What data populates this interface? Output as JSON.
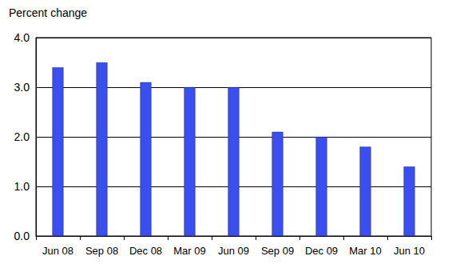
{
  "chart_data": {
    "type": "bar",
    "ylabel": "Percent change",
    "categories": [
      "Jun 08",
      "Sep 08",
      "Dec 08",
      "Mar 09",
      "Jun 09",
      "Sep 09",
      "Dec 09",
      "Mar 10",
      "Jun 10"
    ],
    "values": [
      3.4,
      3.5,
      3.1,
      3.0,
      3.0,
      2.1,
      2.0,
      1.8,
      1.4
    ],
    "color": "#3a4ff0",
    "ylim": [
      0,
      4
    ],
    "yticks": [
      {
        "value": 0,
        "label": "0.0"
      },
      {
        "value": 1,
        "label": "1.0"
      },
      {
        "value": 2,
        "label": "2.0"
      },
      {
        "value": 3,
        "label": "3.0"
      },
      {
        "value": 4,
        "label": "4.0"
      }
    ],
    "grid": true
  }
}
